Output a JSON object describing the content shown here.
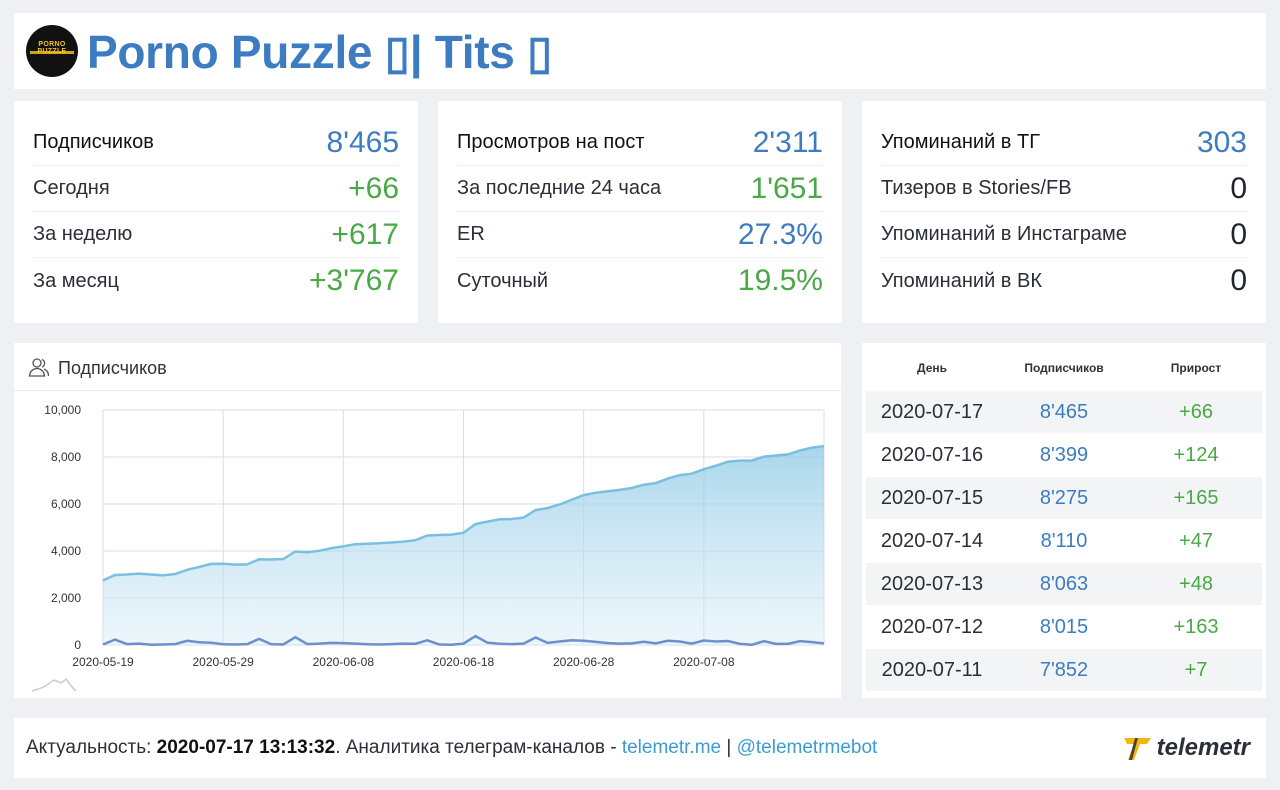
{
  "header": {
    "title": "Porno Puzzle ▯| Tits ▯",
    "avatar_text": "PORNO PUZZLE"
  },
  "stats": {
    "subscribers": {
      "rows": [
        {
          "label": "Подписчиков",
          "value": "8'465",
          "color": "blue"
        },
        {
          "label": "Сегодня",
          "value": "+66",
          "color": "green"
        },
        {
          "label": "За неделю",
          "value": "+617",
          "color": "green"
        },
        {
          "label": "За месяц",
          "value": "+3'767",
          "color": "green"
        }
      ]
    },
    "views": {
      "rows": [
        {
          "label": "Просмотров на пост",
          "value": "2'311",
          "color": "blue"
        },
        {
          "label": "За последние 24 часа",
          "value": "1'651",
          "color": "green"
        },
        {
          "label": "ER",
          "value": "27.3%",
          "color": "blue"
        },
        {
          "label": "Суточный",
          "value": "19.5%",
          "color": "green"
        }
      ]
    },
    "mentions": {
      "rows": [
        {
          "label": "Упоминаний в ТГ",
          "value": "303",
          "color": "blue"
        },
        {
          "label": "Тизеров в Stories/FB",
          "value": "0",
          "color": "dark"
        },
        {
          "label": "Упоминаний в Инстаграме",
          "value": "0",
          "color": "dark"
        },
        {
          "label": "Упоминаний в ВК",
          "value": "0",
          "color": "dark"
        }
      ]
    }
  },
  "chart_panel": {
    "title": "Подписчиков"
  },
  "chart_data": {
    "type": "area",
    "x_ticks": [
      "2020-05-19",
      "2020-05-29",
      "2020-06-08",
      "2020-06-18",
      "2020-06-28",
      "2020-07-08"
    ],
    "y_ticks": [
      "10,000",
      "8,000",
      "6,000",
      "4,000",
      "2,000",
      "0"
    ],
    "ylim": [
      0,
      10000
    ],
    "x_start": "2020-05-19",
    "x_end": "2020-07-17",
    "grid": true,
    "series": [
      {
        "color": "#7bbfe0",
        "values": [
          2750,
          2980,
          3000,
          3040,
          3000,
          2960,
          3020,
          3200,
          3320,
          3450,
          3460,
          3420,
          3430,
          3650,
          3640,
          3660,
          3980,
          3950,
          4010,
          4120,
          4200,
          4290,
          4310,
          4330,
          4360,
          4400,
          4460,
          4660,
          4680,
          4700,
          4780,
          5150,
          5250,
          5350,
          5360,
          5420,
          5740,
          5830,
          5980,
          6180,
          6380,
          6480,
          6540,
          6600,
          6680,
          6820,
          6890,
          7080,
          7230,
          7290,
          7480,
          7630,
          7800,
          7845,
          7852,
          8015,
          8063,
          8110,
          8275,
          8399,
          8465
        ]
      },
      {
        "color": "#6a90d0",
        "values": [
          20,
          230,
          40,
          60,
          10,
          20,
          40,
          180,
          120,
          100,
          30,
          20,
          40,
          260,
          30,
          20,
          330,
          40,
          60,
          90,
          80,
          60,
          30,
          20,
          40,
          60,
          50,
          200,
          20,
          10,
          60,
          380,
          100,
          50,
          40,
          60,
          320,
          90,
          150,
          200,
          180,
          130,
          80,
          60,
          70,
          140,
          70,
          180,
          150,
          60,
          190,
          150,
          170,
          45,
          7,
          163,
          48,
          47,
          165,
          124,
          66
        ]
      }
    ]
  },
  "table": {
    "headers": [
      "День",
      "Подписчиков",
      "Прирост"
    ],
    "rows": [
      {
        "day": "2020-07-17",
        "subs": "8'465",
        "growth": "+66"
      },
      {
        "day": "2020-07-16",
        "subs": "8'399",
        "growth": "+124"
      },
      {
        "day": "2020-07-15",
        "subs": "8'275",
        "growth": "+165"
      },
      {
        "day": "2020-07-14",
        "subs": "8'110",
        "growth": "+47"
      },
      {
        "day": "2020-07-13",
        "subs": "8'063",
        "growth": "+48"
      },
      {
        "day": "2020-07-12",
        "subs": "8'015",
        "growth": "+163"
      },
      {
        "day": "2020-07-11",
        "subs": "7'852",
        "growth": "+7"
      }
    ]
  },
  "footer": {
    "prefix": "Актуальность: ",
    "timestamp": "2020-07-17 13:13:32",
    "middle": ". Аналитика телеграм-каналов - ",
    "link1": "telemetr.me",
    "separator": " | ",
    "link2": "@telemetrmebot",
    "brand": "telemetr"
  },
  "colors": {
    "accent_blue": "#3d7cc0",
    "accent_green": "#4aa846",
    "link": "#3d9bd4"
  }
}
